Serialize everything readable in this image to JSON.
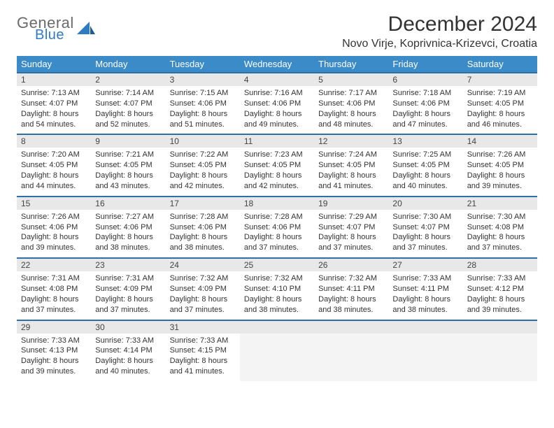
{
  "brand": {
    "line1": "General",
    "line2": "Blue",
    "accent": "#2f7bbf",
    "gray": "#6b6b6b"
  },
  "title": "December 2024",
  "location": "Novo Virje, Koprivnica-Krizevci, Croatia",
  "colors": {
    "header_bg": "#3b8bc8",
    "header_text": "#ffffff",
    "row_divider": "#2f6fa8",
    "daynum_bg": "#e8e8e8",
    "empty_bg": "#f4f4f4",
    "text": "#333333"
  },
  "weekdays": [
    "Sunday",
    "Monday",
    "Tuesday",
    "Wednesday",
    "Thursday",
    "Friday",
    "Saturday"
  ],
  "weeks": [
    [
      {
        "n": "1",
        "sunrise": "Sunrise: 7:13 AM",
        "sunset": "Sunset: 4:07 PM",
        "daylight": "Daylight: 8 hours and 54 minutes."
      },
      {
        "n": "2",
        "sunrise": "Sunrise: 7:14 AM",
        "sunset": "Sunset: 4:07 PM",
        "daylight": "Daylight: 8 hours and 52 minutes."
      },
      {
        "n": "3",
        "sunrise": "Sunrise: 7:15 AM",
        "sunset": "Sunset: 4:06 PM",
        "daylight": "Daylight: 8 hours and 51 minutes."
      },
      {
        "n": "4",
        "sunrise": "Sunrise: 7:16 AM",
        "sunset": "Sunset: 4:06 PM",
        "daylight": "Daylight: 8 hours and 49 minutes."
      },
      {
        "n": "5",
        "sunrise": "Sunrise: 7:17 AM",
        "sunset": "Sunset: 4:06 PM",
        "daylight": "Daylight: 8 hours and 48 minutes."
      },
      {
        "n": "6",
        "sunrise": "Sunrise: 7:18 AM",
        "sunset": "Sunset: 4:06 PM",
        "daylight": "Daylight: 8 hours and 47 minutes."
      },
      {
        "n": "7",
        "sunrise": "Sunrise: 7:19 AM",
        "sunset": "Sunset: 4:05 PM",
        "daylight": "Daylight: 8 hours and 46 minutes."
      }
    ],
    [
      {
        "n": "8",
        "sunrise": "Sunrise: 7:20 AM",
        "sunset": "Sunset: 4:05 PM",
        "daylight": "Daylight: 8 hours and 44 minutes."
      },
      {
        "n": "9",
        "sunrise": "Sunrise: 7:21 AM",
        "sunset": "Sunset: 4:05 PM",
        "daylight": "Daylight: 8 hours and 43 minutes."
      },
      {
        "n": "10",
        "sunrise": "Sunrise: 7:22 AM",
        "sunset": "Sunset: 4:05 PM",
        "daylight": "Daylight: 8 hours and 42 minutes."
      },
      {
        "n": "11",
        "sunrise": "Sunrise: 7:23 AM",
        "sunset": "Sunset: 4:05 PM",
        "daylight": "Daylight: 8 hours and 42 minutes."
      },
      {
        "n": "12",
        "sunrise": "Sunrise: 7:24 AM",
        "sunset": "Sunset: 4:05 PM",
        "daylight": "Daylight: 8 hours and 41 minutes."
      },
      {
        "n": "13",
        "sunrise": "Sunrise: 7:25 AM",
        "sunset": "Sunset: 4:05 PM",
        "daylight": "Daylight: 8 hours and 40 minutes."
      },
      {
        "n": "14",
        "sunrise": "Sunrise: 7:26 AM",
        "sunset": "Sunset: 4:05 PM",
        "daylight": "Daylight: 8 hours and 39 minutes."
      }
    ],
    [
      {
        "n": "15",
        "sunrise": "Sunrise: 7:26 AM",
        "sunset": "Sunset: 4:06 PM",
        "daylight": "Daylight: 8 hours and 39 minutes."
      },
      {
        "n": "16",
        "sunrise": "Sunrise: 7:27 AM",
        "sunset": "Sunset: 4:06 PM",
        "daylight": "Daylight: 8 hours and 38 minutes."
      },
      {
        "n": "17",
        "sunrise": "Sunrise: 7:28 AM",
        "sunset": "Sunset: 4:06 PM",
        "daylight": "Daylight: 8 hours and 38 minutes."
      },
      {
        "n": "18",
        "sunrise": "Sunrise: 7:28 AM",
        "sunset": "Sunset: 4:06 PM",
        "daylight": "Daylight: 8 hours and 37 minutes."
      },
      {
        "n": "19",
        "sunrise": "Sunrise: 7:29 AM",
        "sunset": "Sunset: 4:07 PM",
        "daylight": "Daylight: 8 hours and 37 minutes."
      },
      {
        "n": "20",
        "sunrise": "Sunrise: 7:30 AM",
        "sunset": "Sunset: 4:07 PM",
        "daylight": "Daylight: 8 hours and 37 minutes."
      },
      {
        "n": "21",
        "sunrise": "Sunrise: 7:30 AM",
        "sunset": "Sunset: 4:08 PM",
        "daylight": "Daylight: 8 hours and 37 minutes."
      }
    ],
    [
      {
        "n": "22",
        "sunrise": "Sunrise: 7:31 AM",
        "sunset": "Sunset: 4:08 PM",
        "daylight": "Daylight: 8 hours and 37 minutes."
      },
      {
        "n": "23",
        "sunrise": "Sunrise: 7:31 AM",
        "sunset": "Sunset: 4:09 PM",
        "daylight": "Daylight: 8 hours and 37 minutes."
      },
      {
        "n": "24",
        "sunrise": "Sunrise: 7:32 AM",
        "sunset": "Sunset: 4:09 PM",
        "daylight": "Daylight: 8 hours and 37 minutes."
      },
      {
        "n": "25",
        "sunrise": "Sunrise: 7:32 AM",
        "sunset": "Sunset: 4:10 PM",
        "daylight": "Daylight: 8 hours and 38 minutes."
      },
      {
        "n": "26",
        "sunrise": "Sunrise: 7:32 AM",
        "sunset": "Sunset: 4:11 PM",
        "daylight": "Daylight: 8 hours and 38 minutes."
      },
      {
        "n": "27",
        "sunrise": "Sunrise: 7:33 AM",
        "sunset": "Sunset: 4:11 PM",
        "daylight": "Daylight: 8 hours and 38 minutes."
      },
      {
        "n": "28",
        "sunrise": "Sunrise: 7:33 AM",
        "sunset": "Sunset: 4:12 PM",
        "daylight": "Daylight: 8 hours and 39 minutes."
      }
    ],
    [
      {
        "n": "29",
        "sunrise": "Sunrise: 7:33 AM",
        "sunset": "Sunset: 4:13 PM",
        "daylight": "Daylight: 8 hours and 39 minutes."
      },
      {
        "n": "30",
        "sunrise": "Sunrise: 7:33 AM",
        "sunset": "Sunset: 4:14 PM",
        "daylight": "Daylight: 8 hours and 40 minutes."
      },
      {
        "n": "31",
        "sunrise": "Sunrise: 7:33 AM",
        "sunset": "Sunset: 4:15 PM",
        "daylight": "Daylight: 8 hours and 41 minutes."
      },
      null,
      null,
      null,
      null
    ]
  ]
}
